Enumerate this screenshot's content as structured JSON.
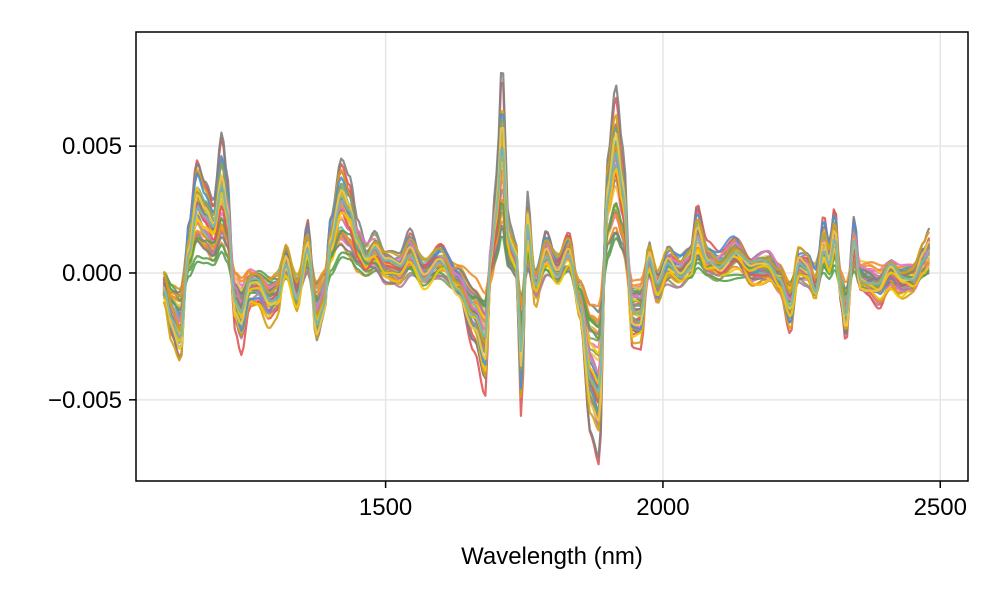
{
  "chart_data": {
    "type": "line",
    "title": "",
    "xlabel": "Wavelength (nm)",
    "ylabel": "",
    "xlim": [
      1050,
      2550
    ],
    "ylim": [
      -0.0082,
      0.0095
    ],
    "xticks": [
      1500,
      2000,
      2500
    ],
    "xtick_labels": [
      "1500",
      "2000",
      "2500"
    ],
    "yticks": [
      -0.005,
      0.0,
      0.005
    ],
    "ytick_labels": [
      "−0.005",
      "0.000",
      "0.005"
    ],
    "grid": true,
    "legend": "none",
    "num_series": 48,
    "x_range": [
      1100,
      2480
    ],
    "palette": [
      "#4d8fd0",
      "#f28e2b",
      "#59a14f",
      "#e15759",
      "#b07aa1",
      "#8c9e5e",
      "#e377c2",
      "#7f7f7f",
      "#d4a017",
      "#f6c600",
      "#edc948",
      "#76b7b2"
    ],
    "profile": {
      "x": [
        1100,
        1115,
        1130,
        1145,
        1160,
        1175,
        1190,
        1205,
        1215,
        1228,
        1240,
        1255,
        1270,
        1290,
        1305,
        1320,
        1340,
        1360,
        1375,
        1390,
        1400,
        1420,
        1435,
        1450,
        1465,
        1480,
        1500,
        1525,
        1545,
        1570,
        1600,
        1630,
        1660,
        1680,
        1690,
        1700,
        1710,
        1722,
        1735,
        1745,
        1755,
        1770,
        1790,
        1810,
        1830,
        1850,
        1870,
        1885,
        1900,
        1915,
        1928,
        1945,
        1960,
        1975,
        1990,
        2010,
        2030,
        2050,
        2062,
        2080,
        2100,
        2130,
        2160,
        2190,
        2210,
        2230,
        2245,
        2260,
        2275,
        2290,
        2300,
        2310,
        2320,
        2330,
        2345,
        2355,
        2370,
        2390,
        2410,
        2430,
        2450,
        2470,
        2480
      ],
      "y": [
        -0.0005,
        -0.0015,
        -0.002,
        0.001,
        0.0025,
        0.002,
        0.0015,
        0.003,
        0.002,
        -0.001,
        -0.0015,
        -0.0005,
        -0.0005,
        -0.001,
        -0.0008,
        0.0005,
        -0.0008,
        0.001,
        -0.0015,
        -0.0008,
        0.0012,
        0.0025,
        0.002,
        0.001,
        0.0005,
        0.0008,
        0.0002,
        0.0001,
        0.0008,
        0.0,
        0.0005,
        -0.0003,
        -0.0015,
        -0.0025,
        0.0005,
        0.002,
        0.0045,
        0.001,
        0.0005,
        -0.003,
        0.0015,
        -0.0005,
        0.0008,
        0.0002,
        0.0008,
        -0.001,
        -0.0035,
        -0.004,
        0.0025,
        0.004,
        0.0025,
        -0.0015,
        -0.0015,
        0.0005,
        -0.0005,
        0.0003,
        0.0001,
        0.0005,
        0.0015,
        0.0005,
        0.0003,
        0.0008,
        0.0001,
        0.0002,
        -0.0002,
        -0.0012,
        0.0003,
        0.0002,
        -0.0004,
        0.0012,
        0.0006,
        0.0015,
        -0.0005,
        -0.0015,
        0.0012,
        -0.0002,
        -0.0003,
        -0.0005,
        0.0,
        -0.0003,
        -0.0002,
        0.0005,
        0.0008
      ]
    }
  }
}
